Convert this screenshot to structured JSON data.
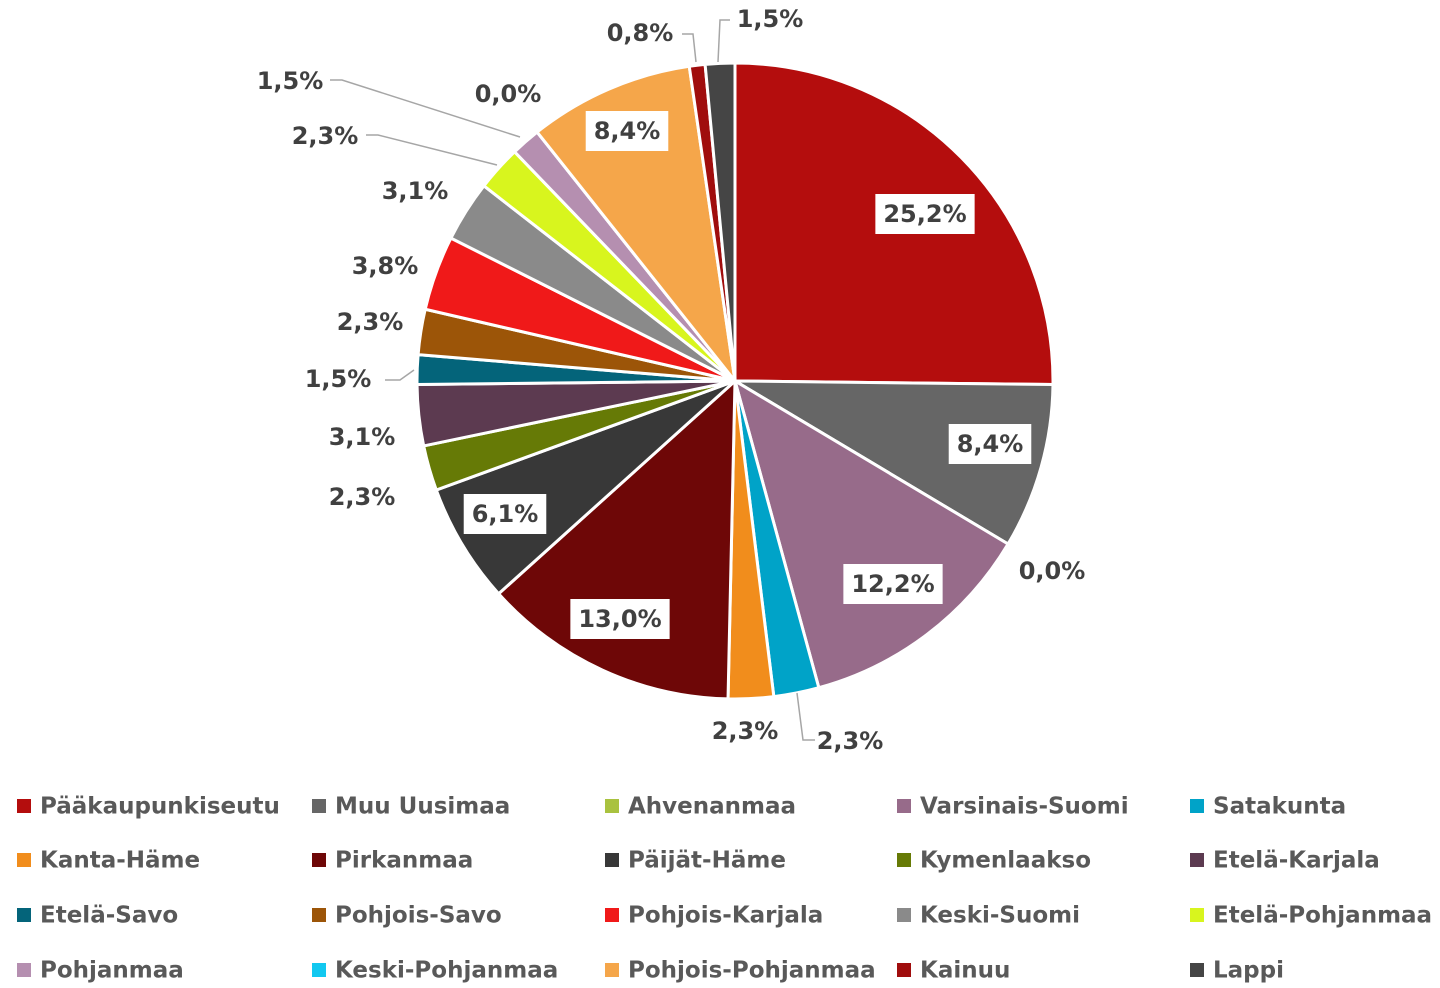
{
  "chart_data": {
    "type": "pie",
    "categories": [
      "Pääkaupunkiseutu",
      "Muu Uusimaa",
      "Ahvenanmaa",
      "Varsinais-Suomi",
      "Satakunta",
      "Kanta-Häme",
      "Pirkanmaa",
      "Päijät-Häme",
      "Kymenlaakso",
      "Etelä-Karjala",
      "Etelä-Savo",
      "Pohjois-Savo",
      "Pohjois-Karjala",
      "Keski-Suomi",
      "Etelä-Pohjanmaa",
      "Pohjanmaa",
      "Keski-Pohjanmaa",
      "Pohjois-Pohjanmaa",
      "Kainuu",
      "Lappi"
    ],
    "values": [
      25.2,
      8.4,
      0.0,
      12.2,
      2.3,
      2.3,
      13.0,
      6.1,
      2.3,
      3.1,
      1.5,
      2.3,
      3.8,
      3.1,
      2.3,
      1.5,
      0.0,
      8.4,
      0.8,
      1.5
    ],
    "value_labels": [
      "25,2%",
      "8,4%",
      "0,0%",
      "12,2%",
      "2,3%",
      "2,3%",
      "13,0%",
      "6,1%",
      "2,3%",
      "3,1%",
      "1,5%",
      "2,3%",
      "3,8%",
      "3,1%",
      "2,3%",
      "1,5%",
      "0,0%",
      "8,4%",
      "0,8%",
      "1,5%"
    ],
    "colors": [
      "#b40d0d",
      "#666666",
      "#a9c23f",
      "#976b8a",
      "#00a3c8",
      "#f18d1c",
      "#6e0707",
      "#383838",
      "#667a06",
      "#5c3a50",
      "#04647a",
      "#9c5508",
      "#f01919",
      "#8a8a8a",
      "#d8f51e",
      "#b58fb0",
      "#12c8f0",
      "#f5a64a",
      "#a00d0d",
      "#454545"
    ],
    "legend": "bottom"
  }
}
